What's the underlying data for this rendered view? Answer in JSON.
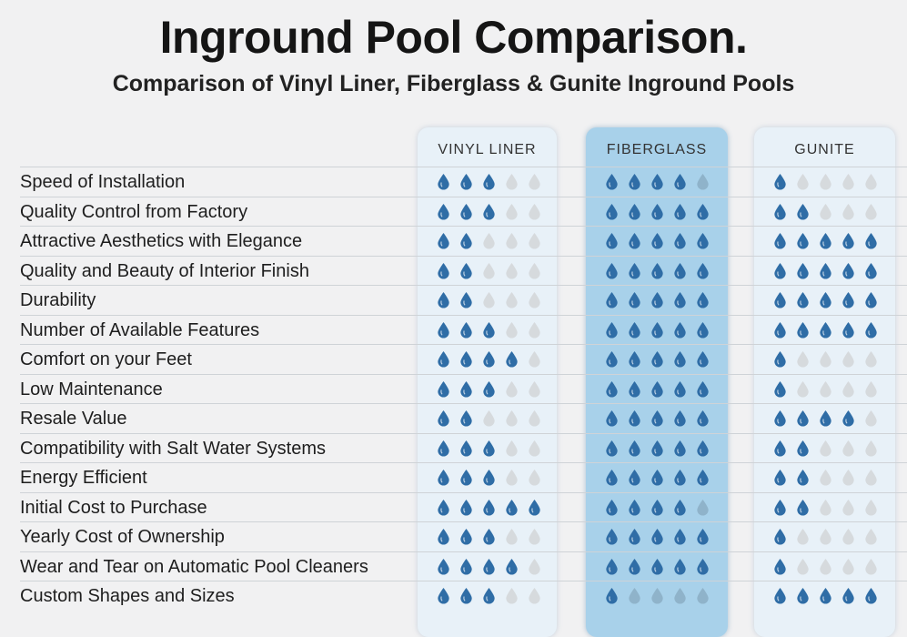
{
  "header": {
    "title": "Inground Pool Comparison.",
    "subtitle": "Comparison of Vinyl Liner, Fiberglass & Gunite Inground Pools"
  },
  "colors": {
    "filled_drop": "#2f6da6",
    "empty_drop_light": "#d6dadd",
    "empty_drop_fiber": "#8fb3ca"
  },
  "chart_data": {
    "type": "table",
    "title": "Inground Pool Comparison.",
    "subtitle": "Comparison of Vinyl Liner, Fiberglass & Gunite Inground Pools",
    "max_rating": 5,
    "columns": [
      "VINYL LINER",
      "FIBERGLASS",
      "GUNITE"
    ],
    "rows": [
      {
        "label": "Speed of Installation",
        "ratings": [
          3,
          4,
          1
        ]
      },
      {
        "label": "Quality Control from Factory",
        "ratings": [
          3,
          5,
          2
        ]
      },
      {
        "label": "Attractive Aesthetics with Elegance",
        "ratings": [
          2,
          5,
          5
        ]
      },
      {
        "label": "Quality and Beauty of Interior Finish",
        "ratings": [
          2,
          5,
          5
        ]
      },
      {
        "label": "Durability",
        "ratings": [
          2,
          5,
          5
        ]
      },
      {
        "label": "Number of Available Features",
        "ratings": [
          3,
          5,
          5
        ]
      },
      {
        "label": "Comfort on your Feet",
        "ratings": [
          4,
          5,
          1
        ]
      },
      {
        "label": "Low Maintenance",
        "ratings": [
          3,
          5,
          1
        ]
      },
      {
        "label": "Resale Value",
        "ratings": [
          2,
          5,
          4
        ]
      },
      {
        "label": "Compatibility with Salt Water Systems",
        "ratings": [
          3,
          5,
          2
        ]
      },
      {
        "label": "Energy Efficient",
        "ratings": [
          3,
          5,
          2
        ]
      },
      {
        "label": "Initial Cost to Purchase",
        "ratings": [
          5,
          4,
          2
        ]
      },
      {
        "label": "Yearly Cost of Ownership",
        "ratings": [
          3,
          5,
          1
        ]
      },
      {
        "label": "Wear and Tear on Automatic  Pool Cleaners",
        "ratings": [
          4,
          5,
          1
        ]
      },
      {
        "label": "Custom Shapes and Sizes",
        "ratings": [
          3,
          1,
          5
        ]
      }
    ]
  }
}
